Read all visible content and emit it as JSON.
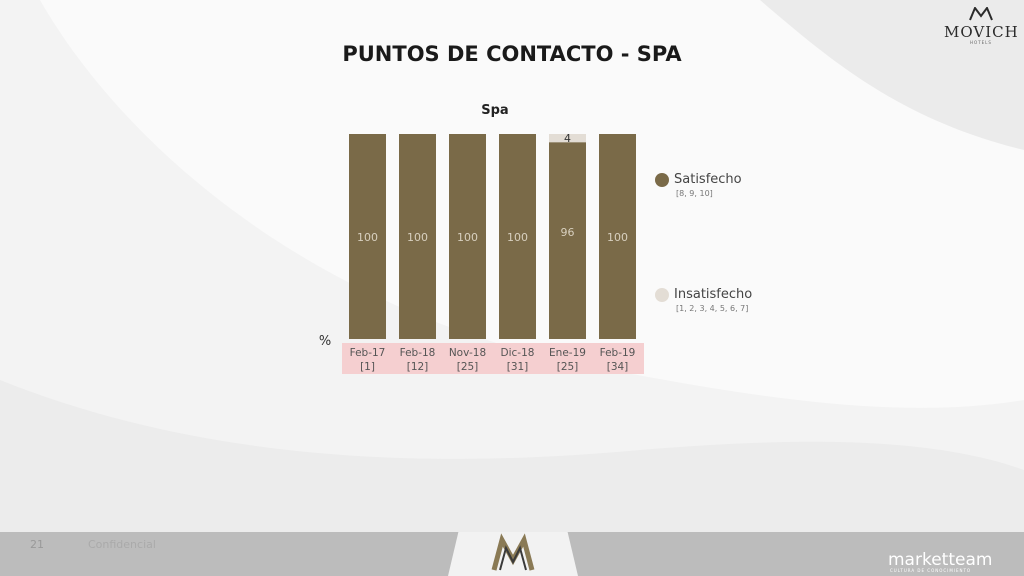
{
  "header": {
    "title": "PUNTOS DE CONTACTO - SPA",
    "brand": "MOVICH",
    "brand_sub": "HOTELS"
  },
  "footer": {
    "page_number": "21",
    "confidential": "Confidencial",
    "partner": "marketteam",
    "partner_sub": "CULTURA DE CONOCIMIENTO"
  },
  "chart_data": {
    "type": "bar",
    "stacked": true,
    "title": "Spa",
    "ylabel": "%",
    "categories": [
      "Feb-17",
      "Feb-18",
      "Nov-18",
      "Dic-18",
      "Ene-19",
      "Feb-19"
    ],
    "sample_sizes": [
      "[1]",
      "[12]",
      "[25]",
      "[31]",
      "[25]",
      "[34]"
    ],
    "series": [
      {
        "name": "Satisfecho",
        "range": "[8, 9, 10]",
        "values": [
          100,
          100,
          100,
          100,
          96,
          100
        ],
        "color": "#7a6a48"
      },
      {
        "name": "Insatisfecho",
        "range": "[1, 2, 3, 4, 5, 6, 7]",
        "values": [
          0,
          0,
          0,
          0,
          4,
          0
        ],
        "color": "#e3ddd5"
      }
    ],
    "ylim": [
      0,
      100
    ],
    "legend_position": "right",
    "category_band_color": "#f5cfd0"
  }
}
